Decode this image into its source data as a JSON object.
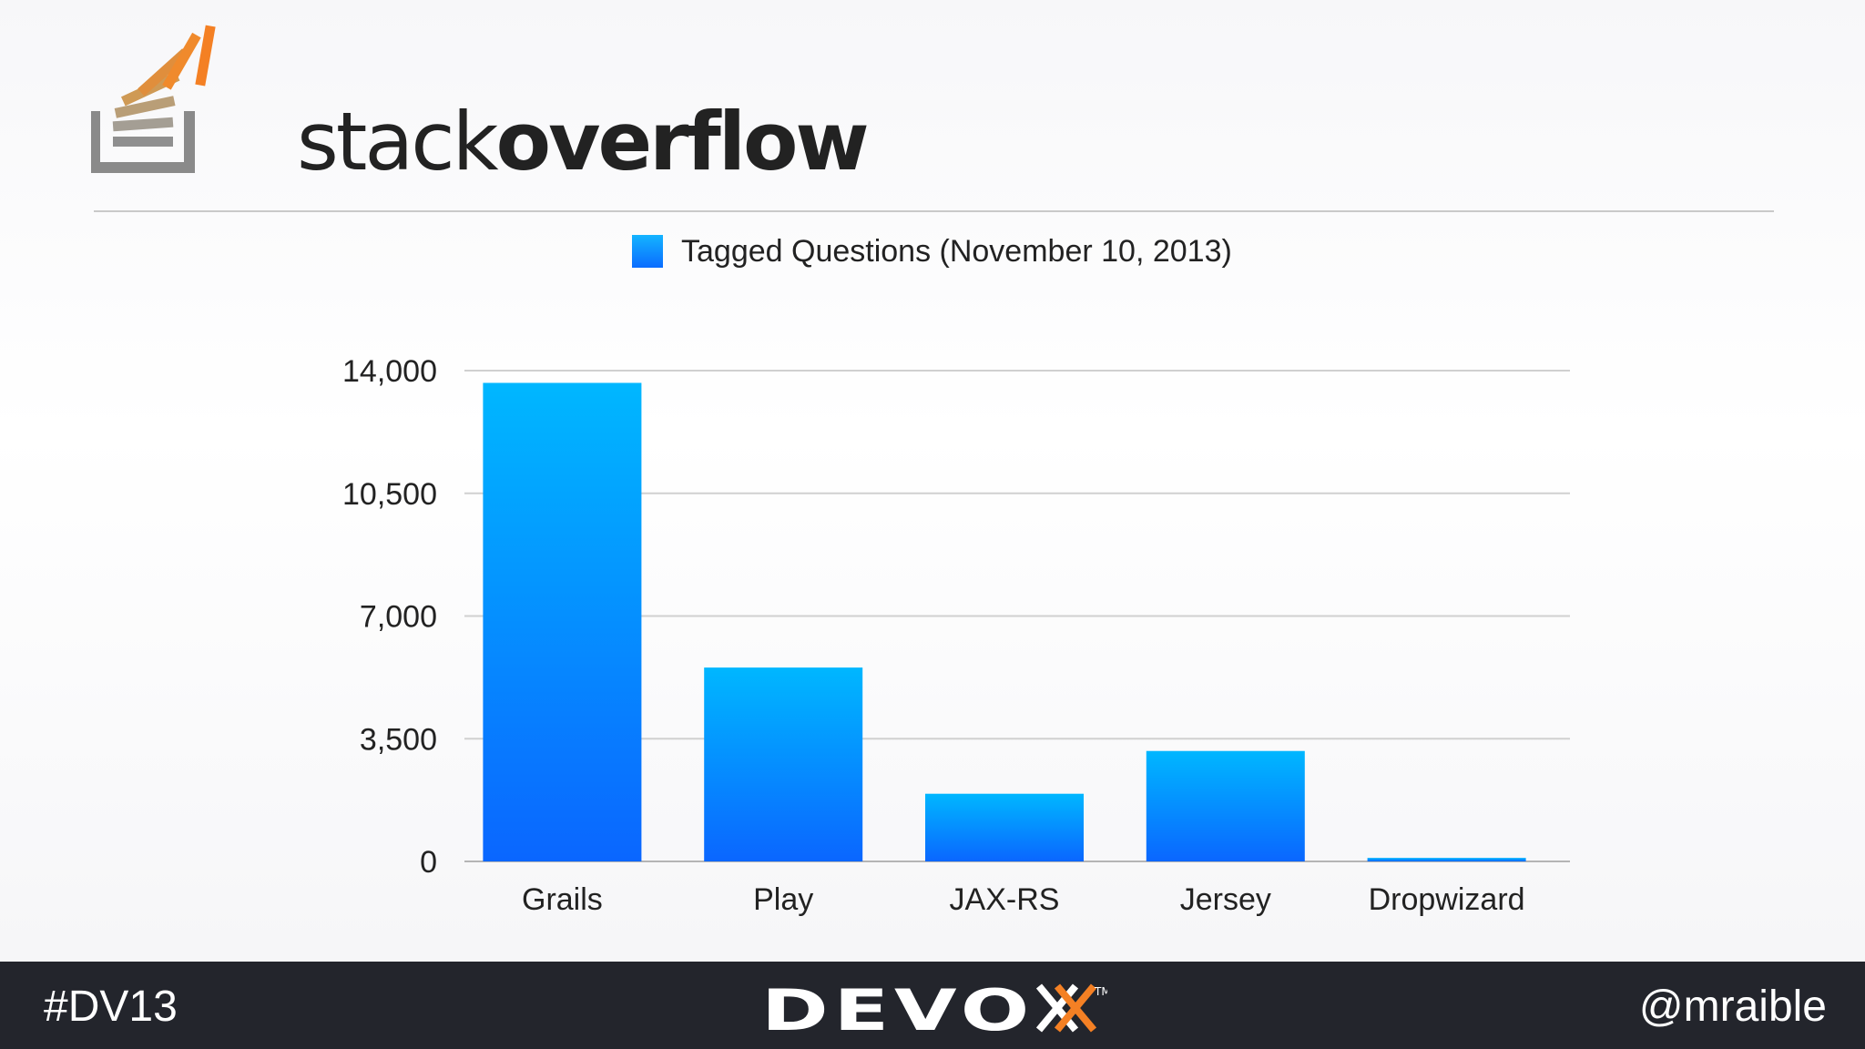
{
  "header": {
    "logo_word_light": "stack",
    "logo_word_bold": "overflow"
  },
  "legend": {
    "label": "Tagged Questions (November 10, 2013)"
  },
  "chart_data": {
    "type": "bar",
    "categories": [
      "Grails",
      "Play",
      "JAX-RS",
      "Jersey",
      "Dropwizard"
    ],
    "series": [
      {
        "name": "Tagged Questions (November 10, 2013)",
        "values": [
          13650,
          5530,
          1930,
          3150,
          100
        ]
      }
    ],
    "ylim": [
      0,
      14000
    ],
    "yticks": [
      0,
      3500,
      7000,
      10500,
      14000
    ],
    "ytick_labels": [
      "0",
      "3,500",
      "7,000",
      "10,500",
      "14,000"
    ],
    "grid": true,
    "legend_position": "top-center",
    "bar_gradient": [
      "#00b7ff",
      "#0a66ff"
    ]
  },
  "footer": {
    "hashtag": "#DV13",
    "handle": "@mraible",
    "brand": "DEVOXX"
  },
  "colors": {
    "footer_bg": "#23252c",
    "logo_orange": "#f48024",
    "logo_gray": "#8a8a8a"
  }
}
